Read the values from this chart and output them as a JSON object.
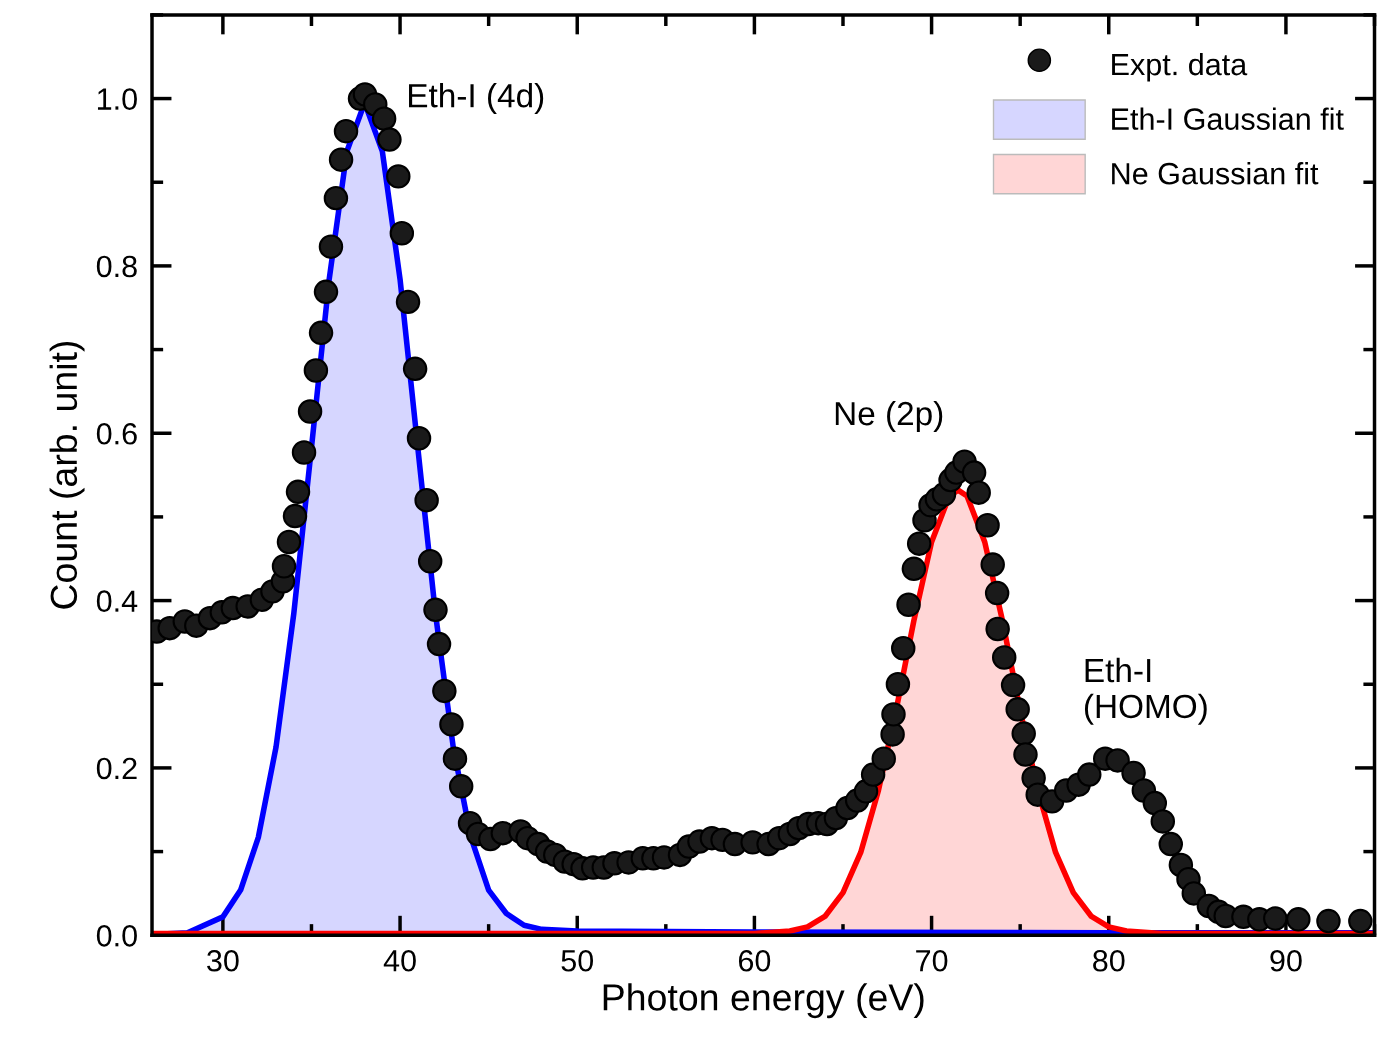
{
  "chart_data": {
    "type": "scatter",
    "xlabel": "Photon energy (eV)",
    "ylabel": "Count (arb. unit)",
    "xlim": [
      26,
      95
    ],
    "ylim": [
      0,
      1.1
    ],
    "xticks": [
      30,
      40,
      50,
      60,
      70,
      80,
      90
    ],
    "yticks": [
      {
        "value": 0,
        "label": "0.0"
      },
      {
        "value": 0.2,
        "label": "0.2"
      },
      {
        "value": 0.4,
        "label": "0.4"
      },
      {
        "value": 0.6,
        "label": "0.6"
      },
      {
        "value": 0.8,
        "label": "0.8"
      },
      {
        "value": 1.0,
        "label": "1.0"
      }
    ],
    "grid": false,
    "legend": "top right",
    "annotations": [
      {
        "text": "Eth-I (4d)",
        "x": 38,
        "y": 1.0
      },
      {
        "text": "Ne (2p)",
        "x": 71.5,
        "y": 0.56
      },
      {
        "text": "Eth-I\n(HOMO)",
        "x": 80.5,
        "y": 0.21
      }
    ],
    "series": [
      {
        "name": "Eth-I Gaussian fit",
        "type": "area",
        "color": "#0000ff",
        "x": [
          26,
          28,
          30,
          31,
          32,
          33,
          34,
          35,
          36,
          37,
          38,
          39,
          40,
          41,
          42,
          43,
          44,
          45,
          46,
          47,
          48,
          50,
          60,
          80,
          95
        ],
        "values": [
          0.001,
          0.003,
          0.022,
          0.054,
          0.117,
          0.225,
          0.384,
          0.583,
          0.784,
          0.937,
          0.995,
          0.937,
          0.784,
          0.583,
          0.384,
          0.225,
          0.117,
          0.054,
          0.026,
          0.012,
          0.007,
          0.005,
          0.004,
          0.003,
          0.003
        ]
      },
      {
        "name": "Ne Gaussian fit",
        "type": "area",
        "color": "#ff0000",
        "x": [
          26,
          60,
          62,
          63,
          64,
          65,
          66,
          67,
          68,
          69,
          70,
          71,
          71.5,
          72,
          73,
          74,
          75,
          76,
          77,
          78,
          79,
          80,
          81,
          83,
          95
        ],
        "values": [
          0.002,
          0.002,
          0.005,
          0.01,
          0.023,
          0.051,
          0.099,
          0.173,
          0.269,
          0.376,
          0.47,
          0.525,
          0.532,
          0.525,
          0.47,
          0.376,
          0.269,
          0.173,
          0.099,
          0.051,
          0.023,
          0.01,
          0.005,
          0.002,
          0.002
        ]
      },
      {
        "name": "Expt. data",
        "marker": "circle",
        "color": "#000000",
        "x": [
          26.27,
          27.0,
          27.85,
          28.5,
          29.27,
          29.94,
          30.56,
          31.4,
          32.2,
          32.8,
          33.39,
          33.45,
          33.73,
          34.07,
          34.24,
          34.58,
          34.92,
          35.25,
          35.54,
          35.82,
          36.1,
          36.38,
          36.67,
          36.95,
          37.74,
          38.02,
          38.6,
          39.1,
          39.4,
          39.9,
          40.1,
          40.45,
          40.85,
          41.07,
          41.5,
          41.7,
          42.0,
          42.2,
          42.5,
          42.9,
          43.1,
          43.45,
          43.95,
          44.4,
          45.1,
          45.8,
          46.8,
          47.2,
          47.8,
          48.3,
          48.76,
          49.3,
          49.8,
          50.3,
          50.9,
          51.5,
          52.1,
          52.9,
          53.7,
          54.3,
          54.9,
          55.8,
          56.3,
          56.9,
          57.6,
          58.2,
          58.9,
          59.9,
          60.8,
          61.4,
          62.0,
          62.5,
          63.05,
          63.6,
          64.1,
          64.6,
          65.25,
          65.8,
          66.3,
          66.7,
          67.3,
          67.8,
          67.85,
          68.1,
          68.4,
          68.7,
          69.0,
          69.3,
          69.6,
          69.94,
          70.3,
          70.7,
          71.07,
          71.4,
          71.86,
          72.4,
          72.66,
          73.16,
          73.45,
          73.7,
          73.73,
          74.1,
          74.6,
          74.86,
          75.2,
          75.3,
          75.76,
          75.99,
          76.8,
          77.6,
          78.3,
          78.9,
          79.8,
          80.5,
          81.4,
          81.98,
          82.6,
          83.05,
          83.5,
          84.07,
          84.5,
          84.8,
          85.65,
          86.2,
          86.6,
          87.6,
          88.5,
          89.4,
          90.7,
          92.4,
          94.2
        ],
        "values": [
          0.363,
          0.367,
          0.375,
          0.37,
          0.379,
          0.386,
          0.391,
          0.393,
          0.401,
          0.411,
          0.423,
          0.441,
          0.47,
          0.501,
          0.53,
          0.577,
          0.626,
          0.675,
          0.72,
          0.769,
          0.823,
          0.881,
          0.927,
          0.961,
          1.0,
          1.005,
          0.993,
          0.976,
          0.951,
          0.907,
          0.839,
          0.757,
          0.677,
          0.594,
          0.52,
          0.447,
          0.389,
          0.348,
          0.292,
          0.252,
          0.211,
          0.178,
          0.134,
          0.121,
          0.115,
          0.122,
          0.124,
          0.116,
          0.109,
          0.1,
          0.096,
          0.088,
          0.085,
          0.08,
          0.081,
          0.081,
          0.086,
          0.087,
          0.092,
          0.092,
          0.093,
          0.096,
          0.106,
          0.112,
          0.116,
          0.114,
          0.109,
          0.111,
          0.109,
          0.116,
          0.121,
          0.128,
          0.133,
          0.134,
          0.133,
          0.14,
          0.152,
          0.161,
          0.172,
          0.192,
          0.211,
          0.24,
          0.264,
          0.3,
          0.343,
          0.395,
          0.438,
          0.468,
          0.496,
          0.514,
          0.521,
          0.527,
          0.544,
          0.553,
          0.566,
          0.553,
          0.529,
          0.49,
          0.443,
          0.409,
          0.366,
          0.332,
          0.299,
          0.27,
          0.241,
          0.216,
          0.188,
          0.168,
          0.16,
          0.173,
          0.18,
          0.192,
          0.211,
          0.209,
          0.194,
          0.173,
          0.158,
          0.136,
          0.109,
          0.084,
          0.067,
          0.05,
          0.035,
          0.028,
          0.023,
          0.022,
          0.019,
          0.02,
          0.019,
          0.017,
          0.017
        ]
      }
    ]
  }
}
